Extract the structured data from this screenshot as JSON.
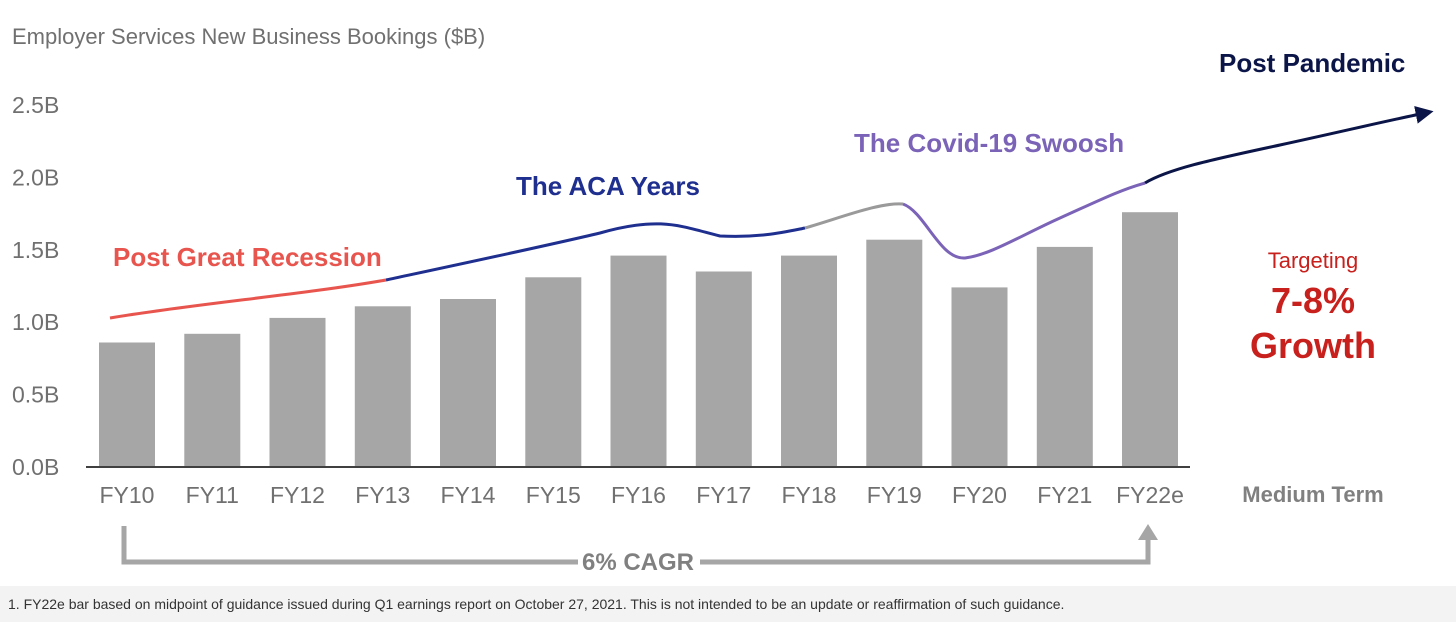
{
  "colors": {
    "bar": "#a6a6a6",
    "axis": "#404040",
    "recession": "#e8554e",
    "aca": "#1f2f8f",
    "covid_transition": "#9a9a9a",
    "covid": "#7b63b8",
    "post_pandemic": "#0c1547",
    "targeting": "#c8201c",
    "cagr": "#a6a6a6"
  },
  "chart_data": {
    "type": "bar",
    "title": "Employer Services  New Business Bookings ($B)",
    "categories": [
      "FY10",
      "FY11",
      "FY12",
      "FY13",
      "FY14",
      "FY15",
      "FY16",
      "FY17",
      "FY18",
      "FY19",
      "FY20",
      "FY21",
      "FY22e"
    ],
    "values": [
      0.86,
      0.92,
      1.03,
      1.11,
      1.16,
      1.31,
      1.46,
      1.35,
      1.46,
      1.57,
      1.24,
      1.52,
      1.76
    ],
    "ylim": [
      0,
      2.5
    ],
    "yticks": [
      "0.0B",
      "0.5B",
      "1.0B",
      "1.5B",
      "2.0B",
      "2.5B"
    ],
    "extra_category": "Medium Term",
    "grid": false,
    "annotations": {
      "post_great_recession": "Post Great Recession",
      "aca_years": "The ACA Years",
      "covid_swoosh": "The Covid-19 Swoosh",
      "post_pandemic": "Post Pandemic",
      "targeting": "Targeting",
      "growth_range": "7-8%",
      "growth_word": "Growth",
      "cagr": "6% CAGR"
    }
  },
  "footnote": "1. FY22e bar based on midpoint of guidance issued during Q1 earnings report on October 27, 2021. This is not intended to be an update or reaffirmation of such guidance."
}
